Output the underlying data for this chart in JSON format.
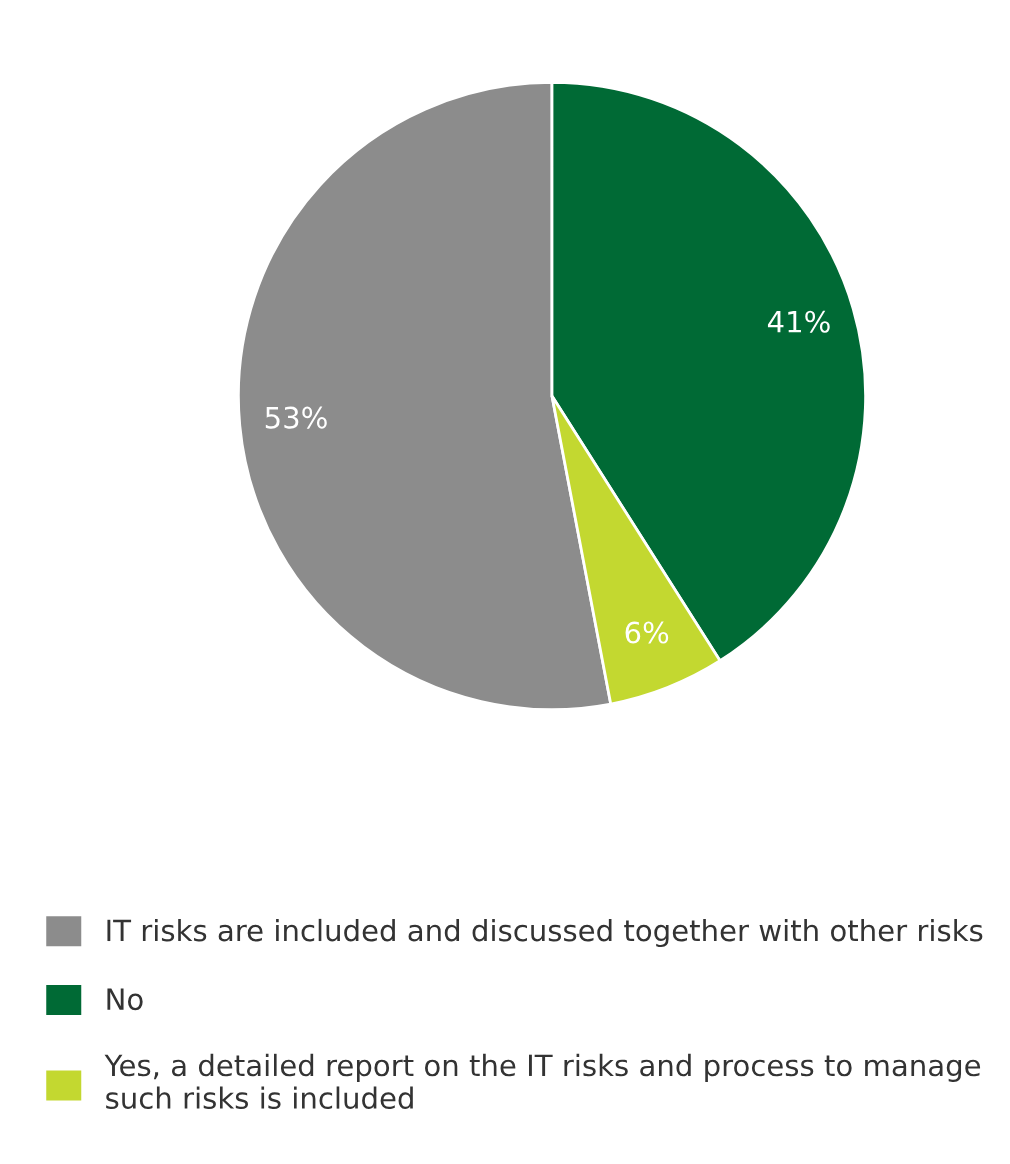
{
  "chart_data": {
    "type": "pie",
    "categories": [
      "IT risks are included and discussed together with other risks",
      "No",
      "Yes, a detailed report on the IT risks and process to manage\nsuch risks is included"
    ],
    "values": [
      53,
      41,
      6
    ],
    "colors": [
      "#8c8c8c",
      "#006a35",
      "#c3d830"
    ],
    "value_labels": [
      "53%",
      "41%",
      "6%"
    ],
    "legend": "bottom"
  }
}
